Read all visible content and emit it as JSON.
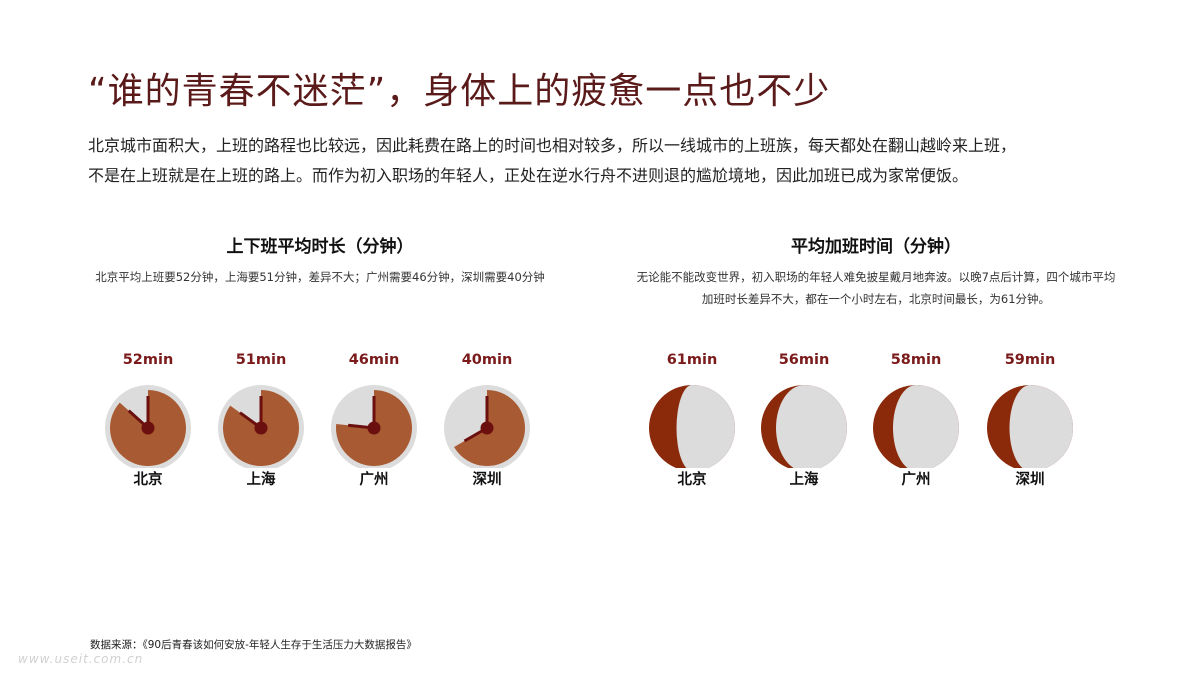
{
  "title": "“谁的青春不迷茫”，身体上的疲惫一点也不少",
  "intro": {
    "line1": "北京城市面积大，上班的路程也比较远，因此耗费在路上的时间也相对较多，所以一线城市的上班族，每天都处在翻山越岭来上班，",
    "line2": "不是在上班就是在上班的路上。而作为初入职场的年轻人，正处在逆水行舟不进则退的尴尬境地，因此加班已成为家常便饭。"
  },
  "colors": {
    "clock_fill": "#a85a32",
    "clock_bg": "#dcdcdc",
    "moon_dark": "#8b2a0a",
    "moon_light": "#dcdcdc",
    "hand": "#6b0f0f"
  },
  "chart_data": [
    {
      "type": "pie",
      "title": "上下班平均时长（分钟）",
      "subtitle": "北京平均上班要52分钟，上海要51分钟，差异不大；广州需要46分钟，深圳需要40分钟",
      "categories": [
        "北京",
        "上海",
        "广州",
        "深圳"
      ],
      "values": [
        52,
        51,
        46,
        40
      ],
      "value_labels": [
        "52min",
        "51min",
        "46min",
        "40min"
      ]
    },
    {
      "type": "pie",
      "title": "平均加班时间（分钟）",
      "subtitle": "无论能不能改变世界，初入职场的年轻人难免披星戴月地奔波。以晚7点后计算，四个城市平均加班时长差异不大，都在一个小时左右，北京时间最长，为61分钟。",
      "categories": [
        "北京",
        "上海",
        "广州",
        "深圳"
      ],
      "values": [
        61,
        56,
        58,
        59
      ],
      "value_labels": [
        "61min",
        "56min",
        "58min",
        "59min"
      ]
    }
  ],
  "source": "数据来源：《90后青春该如何安放-年轻人生存于生活压力大数据报告》",
  "watermark": "www.useit.com.cn"
}
